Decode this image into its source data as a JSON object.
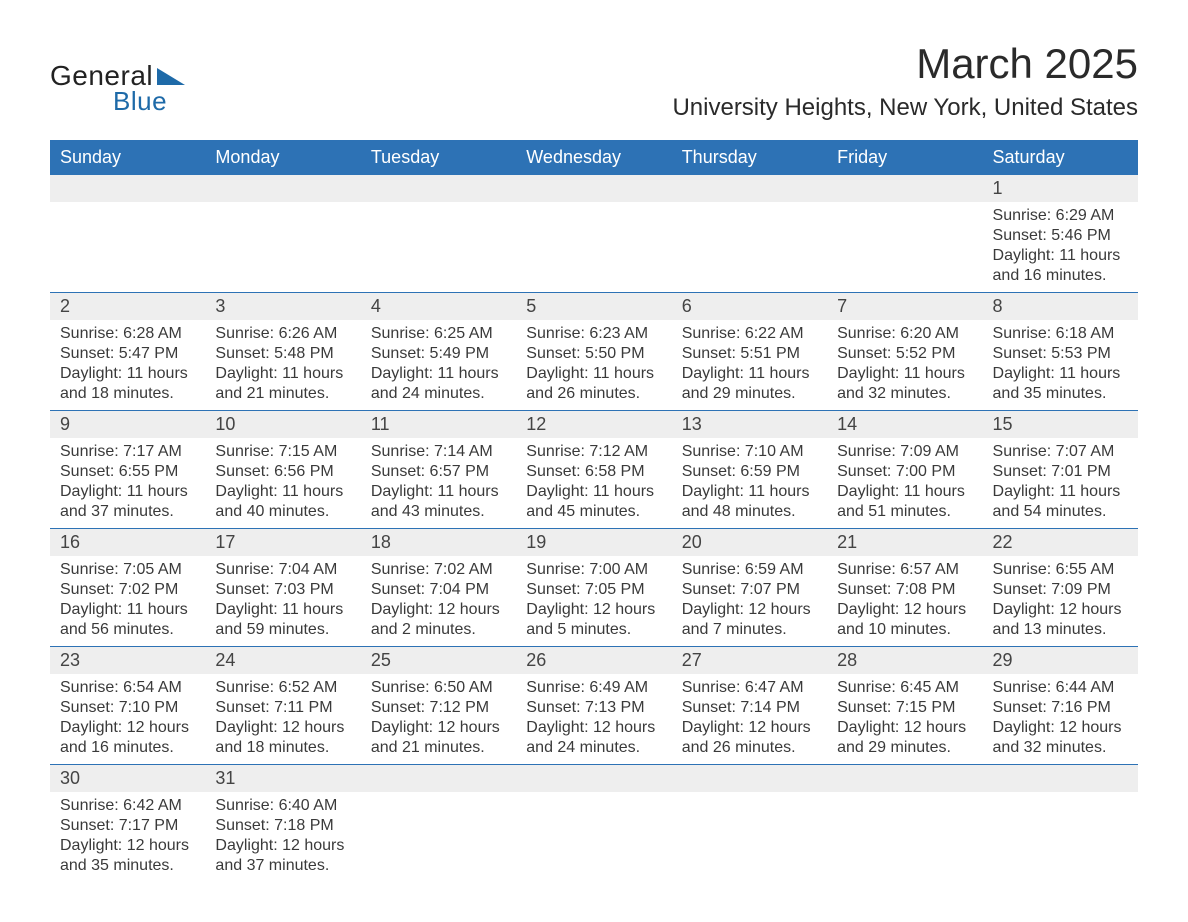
{
  "colors": {
    "header_bg": "#2d72b5",
    "header_text": "#ffffff",
    "date_band_bg": "#eeeeee",
    "body_text": "#3a3a3a",
    "week_border": "#2d72b5",
    "logo_blue": "#1e6aa8",
    "page_bg": "#ffffff"
  },
  "logo": {
    "line1": "General",
    "line2": "Blue"
  },
  "title": "March 2025",
  "subtitle": "University Heights, New York, United States",
  "day_headers": [
    "Sunday",
    "Monday",
    "Tuesday",
    "Wednesday",
    "Thursday",
    "Friday",
    "Saturday"
  ],
  "weeks": [
    {
      "dates": [
        "",
        "",
        "",
        "",
        "",
        "",
        "1"
      ],
      "cells": [
        {},
        {},
        {},
        {},
        {},
        {},
        {
          "sunrise": "Sunrise: 6:29 AM",
          "sunset": "Sunset: 5:46 PM",
          "daylight1": "Daylight: 11 hours",
          "daylight2": "and 16 minutes."
        }
      ]
    },
    {
      "dates": [
        "2",
        "3",
        "4",
        "5",
        "6",
        "7",
        "8"
      ],
      "cells": [
        {
          "sunrise": "Sunrise: 6:28 AM",
          "sunset": "Sunset: 5:47 PM",
          "daylight1": "Daylight: 11 hours",
          "daylight2": "and 18 minutes."
        },
        {
          "sunrise": "Sunrise: 6:26 AM",
          "sunset": "Sunset: 5:48 PM",
          "daylight1": "Daylight: 11 hours",
          "daylight2": "and 21 minutes."
        },
        {
          "sunrise": "Sunrise: 6:25 AM",
          "sunset": "Sunset: 5:49 PM",
          "daylight1": "Daylight: 11 hours",
          "daylight2": "and 24 minutes."
        },
        {
          "sunrise": "Sunrise: 6:23 AM",
          "sunset": "Sunset: 5:50 PM",
          "daylight1": "Daylight: 11 hours",
          "daylight2": "and 26 minutes."
        },
        {
          "sunrise": "Sunrise: 6:22 AM",
          "sunset": "Sunset: 5:51 PM",
          "daylight1": "Daylight: 11 hours",
          "daylight2": "and 29 minutes."
        },
        {
          "sunrise": "Sunrise: 6:20 AM",
          "sunset": "Sunset: 5:52 PM",
          "daylight1": "Daylight: 11 hours",
          "daylight2": "and 32 minutes."
        },
        {
          "sunrise": "Sunrise: 6:18 AM",
          "sunset": "Sunset: 5:53 PM",
          "daylight1": "Daylight: 11 hours",
          "daylight2": "and 35 minutes."
        }
      ]
    },
    {
      "dates": [
        "9",
        "10",
        "11",
        "12",
        "13",
        "14",
        "15"
      ],
      "cells": [
        {
          "sunrise": "Sunrise: 7:17 AM",
          "sunset": "Sunset: 6:55 PM",
          "daylight1": "Daylight: 11 hours",
          "daylight2": "and 37 minutes."
        },
        {
          "sunrise": "Sunrise: 7:15 AM",
          "sunset": "Sunset: 6:56 PM",
          "daylight1": "Daylight: 11 hours",
          "daylight2": "and 40 minutes."
        },
        {
          "sunrise": "Sunrise: 7:14 AM",
          "sunset": "Sunset: 6:57 PM",
          "daylight1": "Daylight: 11 hours",
          "daylight2": "and 43 minutes."
        },
        {
          "sunrise": "Sunrise: 7:12 AM",
          "sunset": "Sunset: 6:58 PM",
          "daylight1": "Daylight: 11 hours",
          "daylight2": "and 45 minutes."
        },
        {
          "sunrise": "Sunrise: 7:10 AM",
          "sunset": "Sunset: 6:59 PM",
          "daylight1": "Daylight: 11 hours",
          "daylight2": "and 48 minutes."
        },
        {
          "sunrise": "Sunrise: 7:09 AM",
          "sunset": "Sunset: 7:00 PM",
          "daylight1": "Daylight: 11 hours",
          "daylight2": "and 51 minutes."
        },
        {
          "sunrise": "Sunrise: 7:07 AM",
          "sunset": "Sunset: 7:01 PM",
          "daylight1": "Daylight: 11 hours",
          "daylight2": "and 54 minutes."
        }
      ]
    },
    {
      "dates": [
        "16",
        "17",
        "18",
        "19",
        "20",
        "21",
        "22"
      ],
      "cells": [
        {
          "sunrise": "Sunrise: 7:05 AM",
          "sunset": "Sunset: 7:02 PM",
          "daylight1": "Daylight: 11 hours",
          "daylight2": "and 56 minutes."
        },
        {
          "sunrise": "Sunrise: 7:04 AM",
          "sunset": "Sunset: 7:03 PM",
          "daylight1": "Daylight: 11 hours",
          "daylight2": "and 59 minutes."
        },
        {
          "sunrise": "Sunrise: 7:02 AM",
          "sunset": "Sunset: 7:04 PM",
          "daylight1": "Daylight: 12 hours",
          "daylight2": "and 2 minutes."
        },
        {
          "sunrise": "Sunrise: 7:00 AM",
          "sunset": "Sunset: 7:05 PM",
          "daylight1": "Daylight: 12 hours",
          "daylight2": "and 5 minutes."
        },
        {
          "sunrise": "Sunrise: 6:59 AM",
          "sunset": "Sunset: 7:07 PM",
          "daylight1": "Daylight: 12 hours",
          "daylight2": "and 7 minutes."
        },
        {
          "sunrise": "Sunrise: 6:57 AM",
          "sunset": "Sunset: 7:08 PM",
          "daylight1": "Daylight: 12 hours",
          "daylight2": "and 10 minutes."
        },
        {
          "sunrise": "Sunrise: 6:55 AM",
          "sunset": "Sunset: 7:09 PM",
          "daylight1": "Daylight: 12 hours",
          "daylight2": "and 13 minutes."
        }
      ]
    },
    {
      "dates": [
        "23",
        "24",
        "25",
        "26",
        "27",
        "28",
        "29"
      ],
      "cells": [
        {
          "sunrise": "Sunrise: 6:54 AM",
          "sunset": "Sunset: 7:10 PM",
          "daylight1": "Daylight: 12 hours",
          "daylight2": "and 16 minutes."
        },
        {
          "sunrise": "Sunrise: 6:52 AM",
          "sunset": "Sunset: 7:11 PM",
          "daylight1": "Daylight: 12 hours",
          "daylight2": "and 18 minutes."
        },
        {
          "sunrise": "Sunrise: 6:50 AM",
          "sunset": "Sunset: 7:12 PM",
          "daylight1": "Daylight: 12 hours",
          "daylight2": "and 21 minutes."
        },
        {
          "sunrise": "Sunrise: 6:49 AM",
          "sunset": "Sunset: 7:13 PM",
          "daylight1": "Daylight: 12 hours",
          "daylight2": "and 24 minutes."
        },
        {
          "sunrise": "Sunrise: 6:47 AM",
          "sunset": "Sunset: 7:14 PM",
          "daylight1": "Daylight: 12 hours",
          "daylight2": "and 26 minutes."
        },
        {
          "sunrise": "Sunrise: 6:45 AM",
          "sunset": "Sunset: 7:15 PM",
          "daylight1": "Daylight: 12 hours",
          "daylight2": "and 29 minutes."
        },
        {
          "sunrise": "Sunrise: 6:44 AM",
          "sunset": "Sunset: 7:16 PM",
          "daylight1": "Daylight: 12 hours",
          "daylight2": "and 32 minutes."
        }
      ]
    },
    {
      "dates": [
        "30",
        "31",
        "",
        "",
        "",
        "",
        ""
      ],
      "cells": [
        {
          "sunrise": "Sunrise: 6:42 AM",
          "sunset": "Sunset: 7:17 PM",
          "daylight1": "Daylight: 12 hours",
          "daylight2": "and 35 minutes."
        },
        {
          "sunrise": "Sunrise: 6:40 AM",
          "sunset": "Sunset: 7:18 PM",
          "daylight1": "Daylight: 12 hours",
          "daylight2": "and 37 minutes."
        },
        {},
        {},
        {},
        {},
        {}
      ]
    }
  ]
}
